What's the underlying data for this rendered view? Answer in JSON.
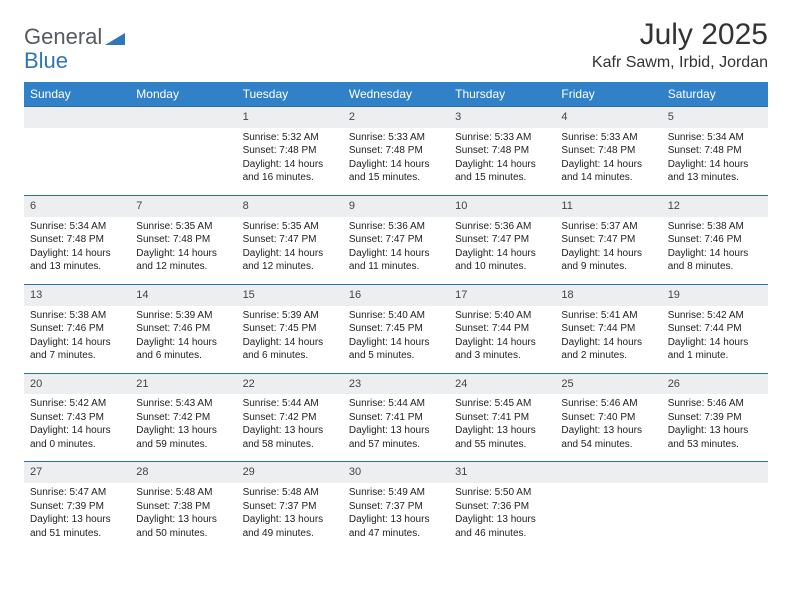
{
  "logo": {
    "part1": "General",
    "part2": "Blue"
  },
  "title": "July 2025",
  "location": "Kafr Sawm, Irbid, Jordan",
  "colors": {
    "header_bg": "#3081c8",
    "header_text": "#ffffff",
    "row_divider": "#2f6fa8",
    "daynum_bg": "#eceef0",
    "logo_gray": "#555b60",
    "logo_blue": "#2f76ba"
  },
  "dayNames": [
    "Sunday",
    "Monday",
    "Tuesday",
    "Wednesday",
    "Thursday",
    "Friday",
    "Saturday"
  ],
  "weeks": [
    [
      null,
      null,
      {
        "n": "1",
        "r": "Sunrise: 5:32 AM",
        "s": "Sunset: 7:48 PM",
        "d": "Daylight: 14 hours and 16 minutes."
      },
      {
        "n": "2",
        "r": "Sunrise: 5:33 AM",
        "s": "Sunset: 7:48 PM",
        "d": "Daylight: 14 hours and 15 minutes."
      },
      {
        "n": "3",
        "r": "Sunrise: 5:33 AM",
        "s": "Sunset: 7:48 PM",
        "d": "Daylight: 14 hours and 15 minutes."
      },
      {
        "n": "4",
        "r": "Sunrise: 5:33 AM",
        "s": "Sunset: 7:48 PM",
        "d": "Daylight: 14 hours and 14 minutes."
      },
      {
        "n": "5",
        "r": "Sunrise: 5:34 AM",
        "s": "Sunset: 7:48 PM",
        "d": "Daylight: 14 hours and 13 minutes."
      }
    ],
    [
      {
        "n": "6",
        "r": "Sunrise: 5:34 AM",
        "s": "Sunset: 7:48 PM",
        "d": "Daylight: 14 hours and 13 minutes."
      },
      {
        "n": "7",
        "r": "Sunrise: 5:35 AM",
        "s": "Sunset: 7:48 PM",
        "d": "Daylight: 14 hours and 12 minutes."
      },
      {
        "n": "8",
        "r": "Sunrise: 5:35 AM",
        "s": "Sunset: 7:47 PM",
        "d": "Daylight: 14 hours and 12 minutes."
      },
      {
        "n": "9",
        "r": "Sunrise: 5:36 AM",
        "s": "Sunset: 7:47 PM",
        "d": "Daylight: 14 hours and 11 minutes."
      },
      {
        "n": "10",
        "r": "Sunrise: 5:36 AM",
        "s": "Sunset: 7:47 PM",
        "d": "Daylight: 14 hours and 10 minutes."
      },
      {
        "n": "11",
        "r": "Sunrise: 5:37 AM",
        "s": "Sunset: 7:47 PM",
        "d": "Daylight: 14 hours and 9 minutes."
      },
      {
        "n": "12",
        "r": "Sunrise: 5:38 AM",
        "s": "Sunset: 7:46 PM",
        "d": "Daylight: 14 hours and 8 minutes."
      }
    ],
    [
      {
        "n": "13",
        "r": "Sunrise: 5:38 AM",
        "s": "Sunset: 7:46 PM",
        "d": "Daylight: 14 hours and 7 minutes."
      },
      {
        "n": "14",
        "r": "Sunrise: 5:39 AM",
        "s": "Sunset: 7:46 PM",
        "d": "Daylight: 14 hours and 6 minutes."
      },
      {
        "n": "15",
        "r": "Sunrise: 5:39 AM",
        "s": "Sunset: 7:45 PM",
        "d": "Daylight: 14 hours and 6 minutes."
      },
      {
        "n": "16",
        "r": "Sunrise: 5:40 AM",
        "s": "Sunset: 7:45 PM",
        "d": "Daylight: 14 hours and 5 minutes."
      },
      {
        "n": "17",
        "r": "Sunrise: 5:40 AM",
        "s": "Sunset: 7:44 PM",
        "d": "Daylight: 14 hours and 3 minutes."
      },
      {
        "n": "18",
        "r": "Sunrise: 5:41 AM",
        "s": "Sunset: 7:44 PM",
        "d": "Daylight: 14 hours and 2 minutes."
      },
      {
        "n": "19",
        "r": "Sunrise: 5:42 AM",
        "s": "Sunset: 7:44 PM",
        "d": "Daylight: 14 hours and 1 minute."
      }
    ],
    [
      {
        "n": "20",
        "r": "Sunrise: 5:42 AM",
        "s": "Sunset: 7:43 PM",
        "d": "Daylight: 14 hours and 0 minutes."
      },
      {
        "n": "21",
        "r": "Sunrise: 5:43 AM",
        "s": "Sunset: 7:42 PM",
        "d": "Daylight: 13 hours and 59 minutes."
      },
      {
        "n": "22",
        "r": "Sunrise: 5:44 AM",
        "s": "Sunset: 7:42 PM",
        "d": "Daylight: 13 hours and 58 minutes."
      },
      {
        "n": "23",
        "r": "Sunrise: 5:44 AM",
        "s": "Sunset: 7:41 PM",
        "d": "Daylight: 13 hours and 57 minutes."
      },
      {
        "n": "24",
        "r": "Sunrise: 5:45 AM",
        "s": "Sunset: 7:41 PM",
        "d": "Daylight: 13 hours and 55 minutes."
      },
      {
        "n": "25",
        "r": "Sunrise: 5:46 AM",
        "s": "Sunset: 7:40 PM",
        "d": "Daylight: 13 hours and 54 minutes."
      },
      {
        "n": "26",
        "r": "Sunrise: 5:46 AM",
        "s": "Sunset: 7:39 PM",
        "d": "Daylight: 13 hours and 53 minutes."
      }
    ],
    [
      {
        "n": "27",
        "r": "Sunrise: 5:47 AM",
        "s": "Sunset: 7:39 PM",
        "d": "Daylight: 13 hours and 51 minutes."
      },
      {
        "n": "28",
        "r": "Sunrise: 5:48 AM",
        "s": "Sunset: 7:38 PM",
        "d": "Daylight: 13 hours and 50 minutes."
      },
      {
        "n": "29",
        "r": "Sunrise: 5:48 AM",
        "s": "Sunset: 7:37 PM",
        "d": "Daylight: 13 hours and 49 minutes."
      },
      {
        "n": "30",
        "r": "Sunrise: 5:49 AM",
        "s": "Sunset: 7:37 PM",
        "d": "Daylight: 13 hours and 47 minutes."
      },
      {
        "n": "31",
        "r": "Sunrise: 5:50 AM",
        "s": "Sunset: 7:36 PM",
        "d": "Daylight: 13 hours and 46 minutes."
      },
      null,
      null
    ]
  ]
}
